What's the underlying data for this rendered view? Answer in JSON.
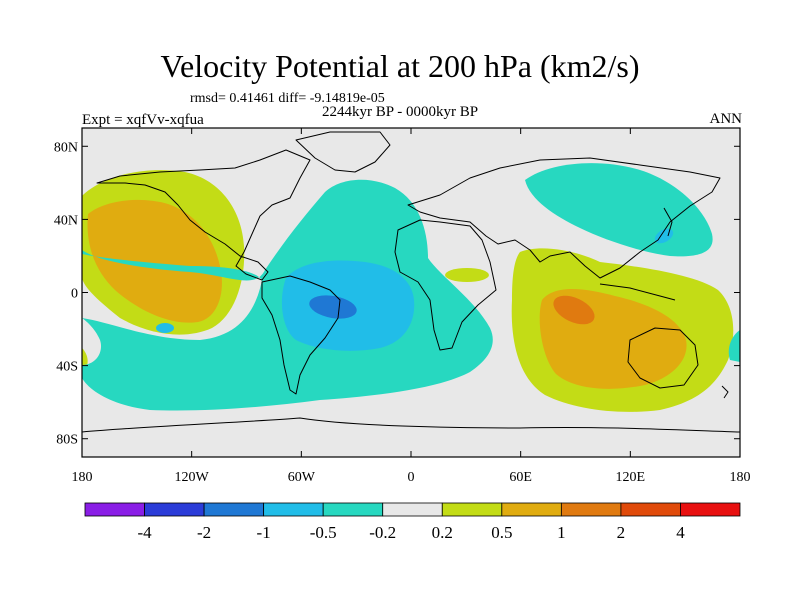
{
  "title": "Velocity Potential at 200 hPa (km2/s)",
  "stats": "rmsd= 0.41461 diff= -9.14819e-05",
  "left_label": "Expt = xqfVv-xqfua",
  "center_label": "2244kyr BP - 0000kyr BP",
  "right_label": "ANN",
  "lon_ticks": [
    "180",
    "120W",
    "60W",
    "0",
    "60E",
    "120E",
    "180"
  ],
  "lat_ticks": [
    "80N",
    "40N",
    "0",
    "40S",
    "80S"
  ],
  "colorbar": {
    "labels": [
      "-4",
      "-2",
      "-1",
      "-0.5",
      "-0.2",
      "0.2",
      "0.5",
      "1",
      "2",
      "4"
    ],
    "colors": [
      "#8a1ee6",
      "#2b3cd8",
      "#1f78d4",
      "#21bde8",
      "#27d8c0",
      "#e8e8e8",
      "#c3dc16",
      "#e0ac10",
      "#e07a10",
      "#e04a0a",
      "#e81010"
    ]
  },
  "map_data": {
    "projection": "cylindrical equidistant",
    "lon_range": [
      -180,
      180
    ],
    "lat_range": [
      -90,
      90
    ],
    "anomalies": [
      {
        "region": "East Pacific / North America",
        "level": "0.5 to 1",
        "color": "#e0ac10"
      },
      {
        "region": "Tropical Atlantic / South America",
        "level": "-1 to -0.5",
        "color": "#21bde8"
      },
      {
        "region": "Indian Ocean / Maritime Continent",
        "level": "1 to 2",
        "color": "#e07a10"
      },
      {
        "region": "North Pacific / East Asia",
        "level": "-0.5 to -0.2",
        "color": "#27d8c0"
      }
    ]
  }
}
